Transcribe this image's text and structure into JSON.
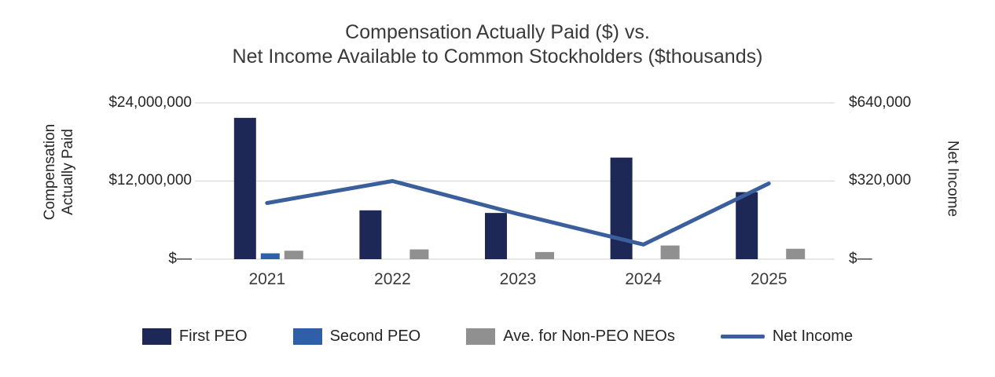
{
  "title": {
    "line1": "Compensation Actually Paid ($) vs.",
    "line2": "Net Income Available to Common Stockholders ($thousands)"
  },
  "left_axis": {
    "title_line1": "Compensation",
    "title_line2": "Actually Paid",
    "ticks": [
      "$24,000,000",
      "$12,000,000",
      "$—"
    ]
  },
  "right_axis": {
    "title": "Net Income",
    "ticks": [
      "$640,000",
      "$320,000",
      "$—"
    ]
  },
  "grid_color": "#d9d9d9",
  "chart_data": {
    "type": "bar",
    "subtype": "combo-bar-line",
    "title": "Compensation Actually Paid ($) vs. Net Income Available to Common Stockholders ($thousands)",
    "categories": [
      "2021",
      "2022",
      "2023",
      "2024",
      "2025"
    ],
    "left_ylabel": "Compensation Actually Paid",
    "right_ylabel": "Net Income",
    "left_ylim": [
      0,
      24000000
    ],
    "right_ylim": [
      0,
      640000
    ],
    "left_ticks": [
      0,
      12000000,
      24000000
    ],
    "grid": "horizontal",
    "legend_position": "bottom",
    "series": [
      {
        "name": "First PEO",
        "type": "bar",
        "axis": "left",
        "color": "#1e2857",
        "values": [
          21700000,
          7500000,
          7100000,
          15600000,
          10300000
        ]
      },
      {
        "name": "Second PEO",
        "type": "bar",
        "axis": "left",
        "color": "#2e5fa8",
        "values": [
          900000,
          0,
          0,
          0,
          0
        ]
      },
      {
        "name": "Ave. for Non-PEO NEOs",
        "type": "bar",
        "axis": "left",
        "color": "#909090",
        "values": [
          1300000,
          1500000,
          1100000,
          2100000,
          1600000
        ]
      },
      {
        "name": "Net Income",
        "type": "line",
        "axis": "right",
        "color": "#3a5f9c",
        "values": [
          230000,
          320000,
          185000,
          60000,
          310000
        ]
      }
    ]
  }
}
